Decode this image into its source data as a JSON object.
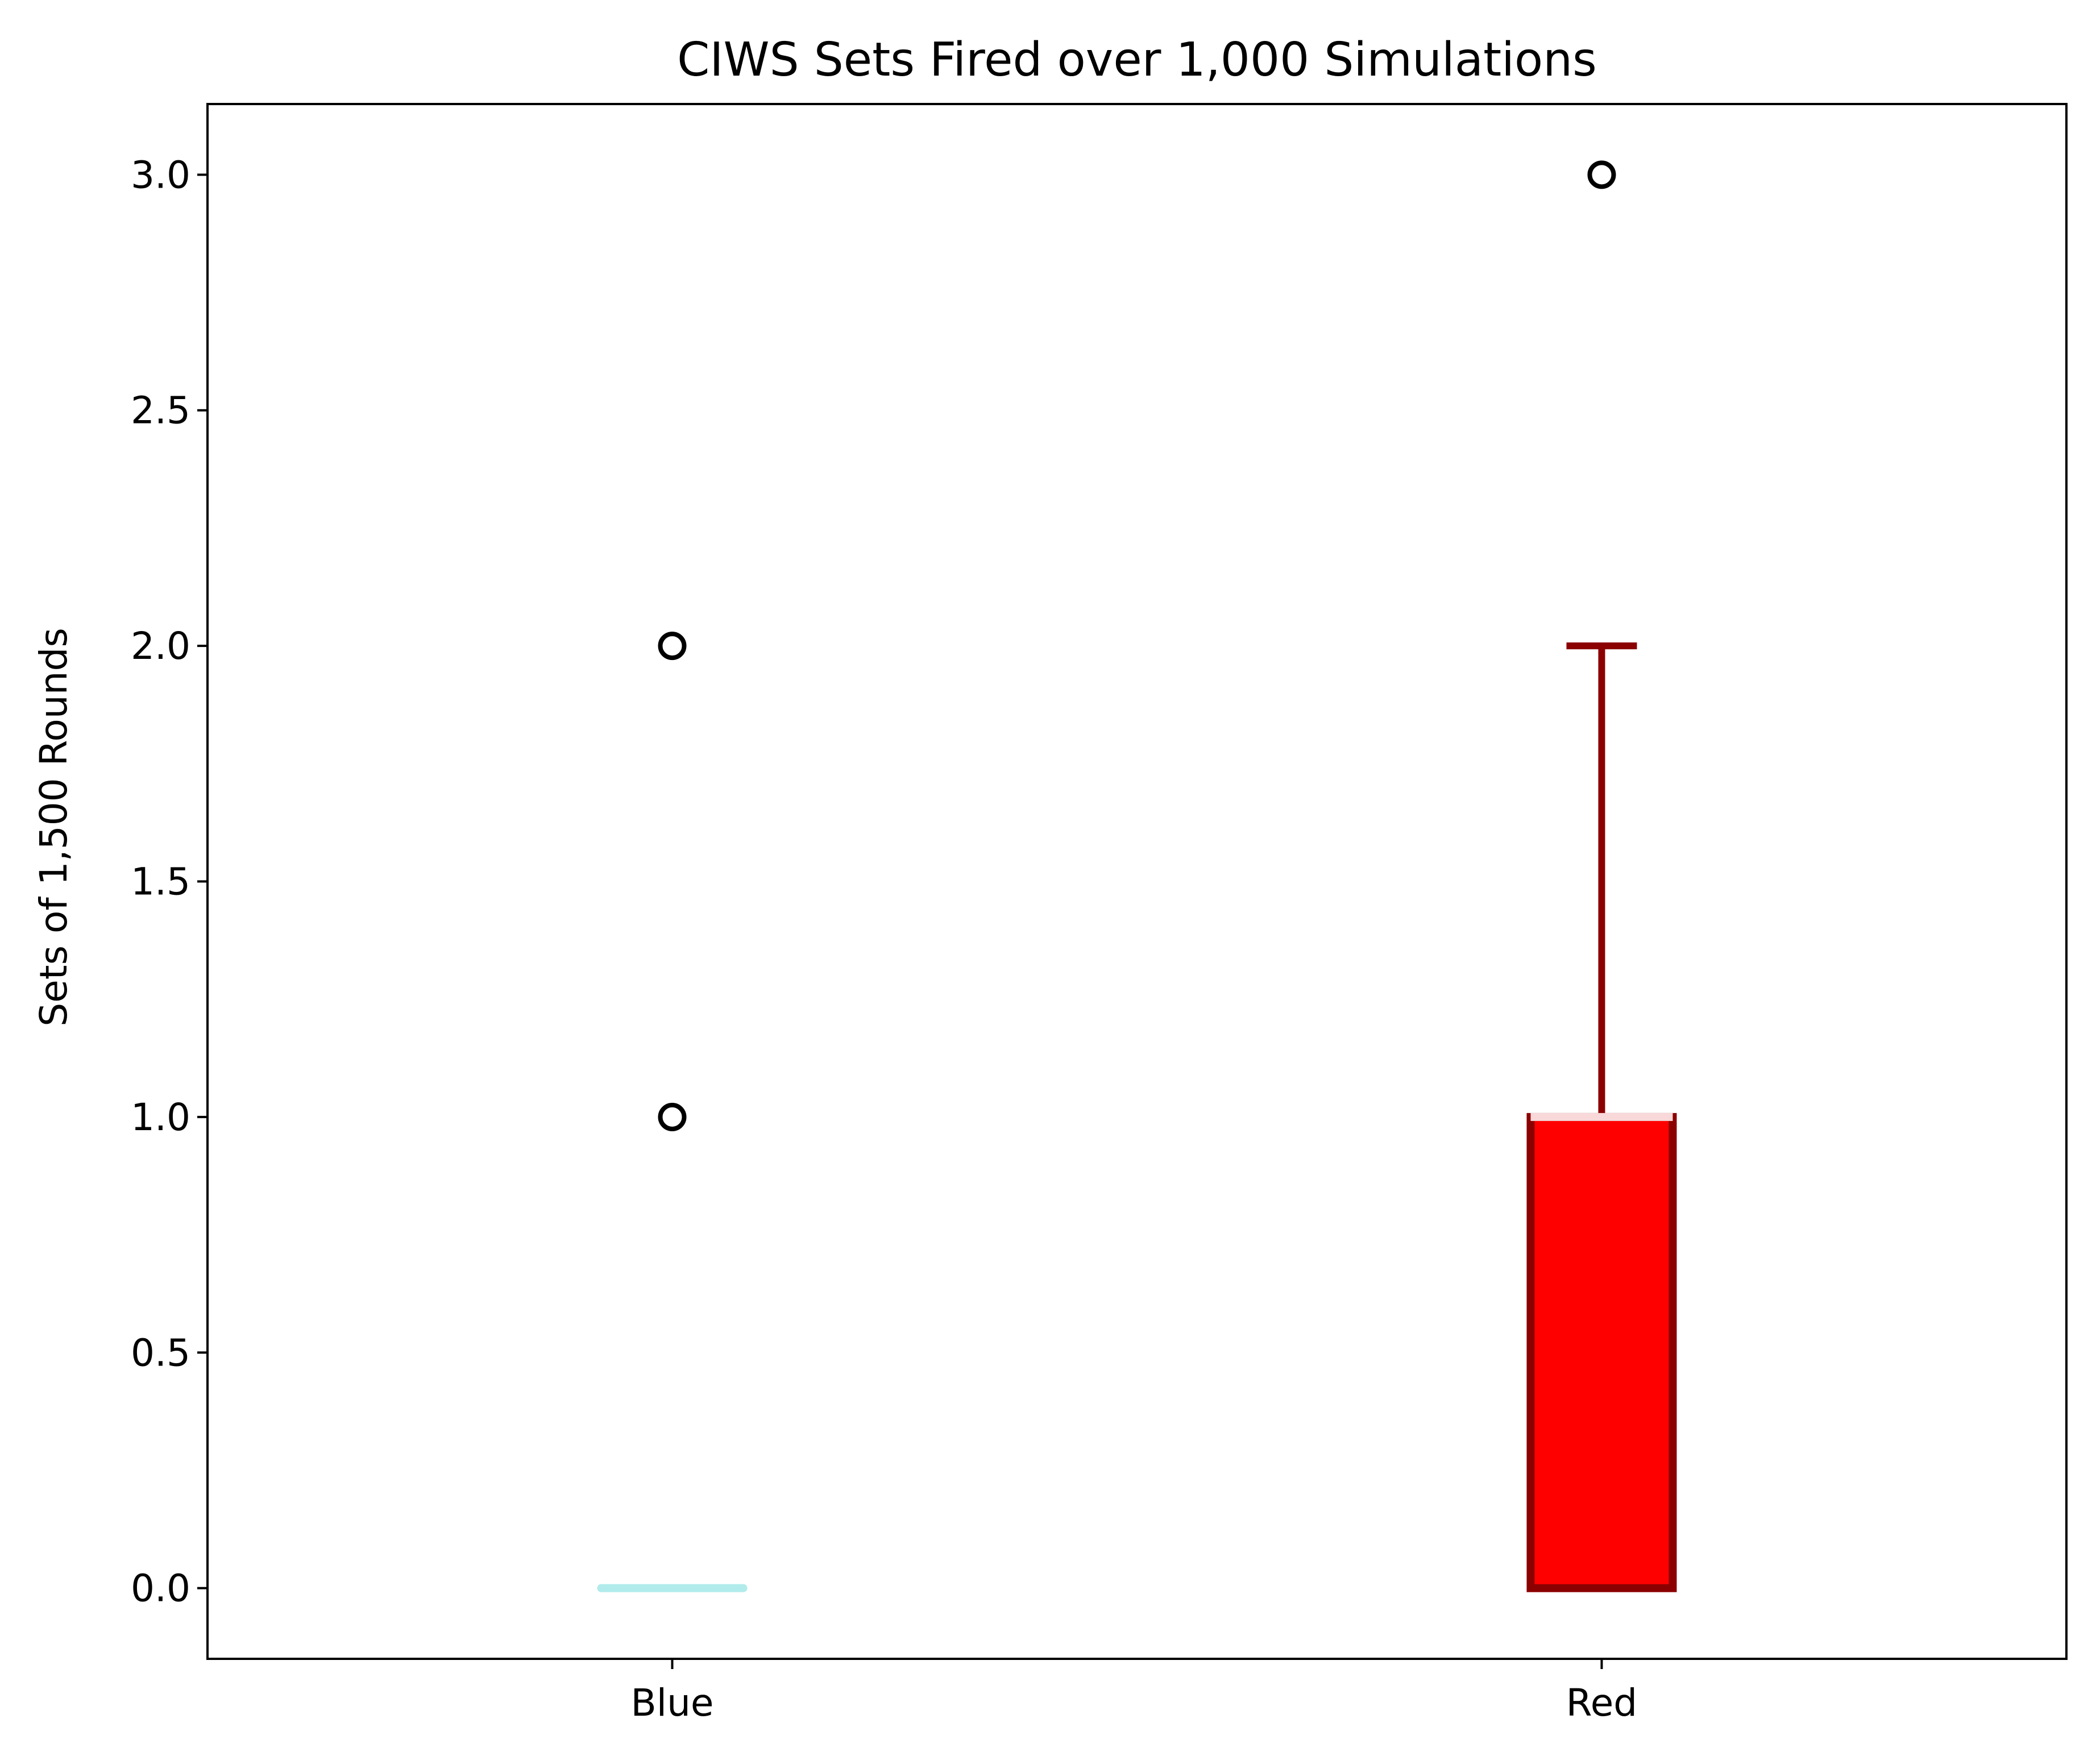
{
  "chart_data": {
    "type": "box",
    "title": "CIWS Sets Fired over 1,000 Simulations",
    "xlabel": "",
    "ylabel": "Sets of 1,500 Rounds",
    "ylim": [
      -0.15,
      3.15
    ],
    "yticks": [
      0.0,
      0.5,
      1.0,
      1.5,
      2.0,
      2.5,
      3.0
    ],
    "ytick_labels": [
      "0.0",
      "0.5",
      "1.0",
      "1.5",
      "2.0",
      "2.5",
      "3.0"
    ],
    "categories": [
      "Blue",
      "Red"
    ],
    "grid": false,
    "legend": "none",
    "series": [
      {
        "category": "Blue",
        "min": 0.0,
        "q1": 0.0,
        "median": 0.0,
        "q3": 0.0,
        "max": 0.0,
        "outliers": [
          1.0,
          2.0
        ],
        "box_color": "#b2ebeb",
        "edge_color": "#b2ebeb",
        "median_color": "#b2ebeb",
        "whisker_color": "#b2ebeb"
      },
      {
        "category": "Red",
        "min": 0.0,
        "q1": 0.0,
        "median": 1.0,
        "q3": 1.0,
        "max": 2.0,
        "outliers": [
          3.0
        ],
        "box_color": "#ff0000",
        "edge_color": "#8b0000",
        "median_color": "#f8d8d8",
        "whisker_color": "#8b0000"
      }
    ]
  }
}
